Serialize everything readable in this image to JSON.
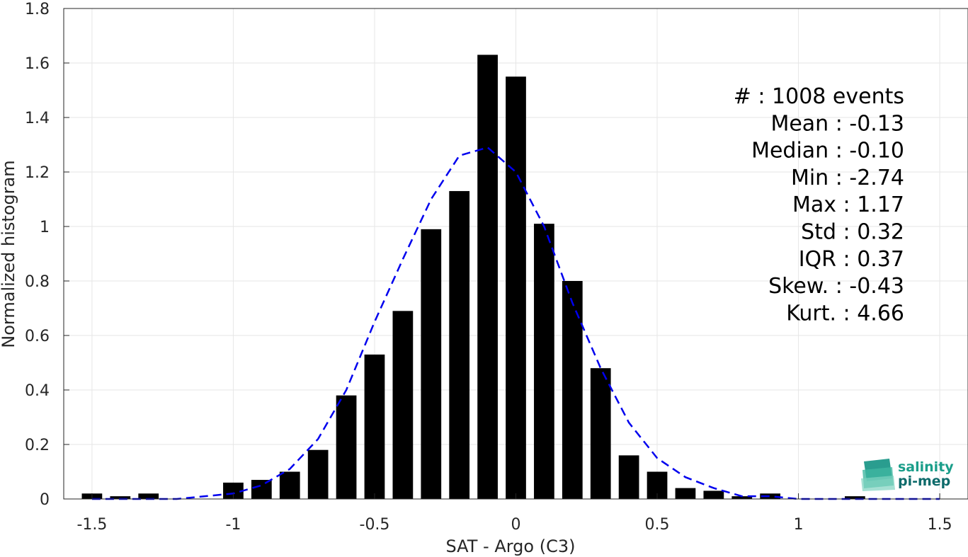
{
  "chart_data": {
    "type": "bar",
    "xlabel": "SAT - Argo (C3)",
    "ylabel": "Normalized histogram",
    "xlim": [
      -1.6,
      1.6
    ],
    "ylim": [
      0,
      1.8
    ],
    "grid": true,
    "xticks": [
      "-1.5",
      "-1",
      "-0.5",
      "0",
      "0.5",
      "1",
      "1.5"
    ],
    "xtick_values": [
      -1.5,
      -1,
      -0.5,
      0,
      0.5,
      1,
      1.5
    ],
    "yticks": [
      "0",
      "0.2",
      "0.4",
      "0.6",
      "0.8",
      "1",
      "1.2",
      "1.4",
      "1.6",
      "1.8"
    ],
    "ytick_values": [
      0,
      0.2,
      0.4,
      0.6,
      0.8,
      1.0,
      1.2,
      1.4,
      1.6,
      1.8
    ],
    "bar_color": "#000000",
    "bars": [
      {
        "x": -1.5,
        "y": 0.02
      },
      {
        "x": -1.4,
        "y": 0.01
      },
      {
        "x": -1.3,
        "y": 0.02
      },
      {
        "x": -1.0,
        "y": 0.06
      },
      {
        "x": -0.9,
        "y": 0.07
      },
      {
        "x": -0.8,
        "y": 0.1
      },
      {
        "x": -0.7,
        "y": 0.18
      },
      {
        "x": -0.6,
        "y": 0.38
      },
      {
        "x": -0.5,
        "y": 0.53
      },
      {
        "x": -0.4,
        "y": 0.69
      },
      {
        "x": -0.3,
        "y": 0.99
      },
      {
        "x": -0.2,
        "y": 1.13
      },
      {
        "x": -0.1,
        "y": 1.63
      },
      {
        "x": 0.0,
        "y": 1.55
      },
      {
        "x": 0.1,
        "y": 1.01
      },
      {
        "x": 0.2,
        "y": 0.8
      },
      {
        "x": 0.3,
        "y": 0.48
      },
      {
        "x": 0.4,
        "y": 0.16
      },
      {
        "x": 0.5,
        "y": 0.1
      },
      {
        "x": 0.6,
        "y": 0.04
      },
      {
        "x": 0.7,
        "y": 0.03
      },
      {
        "x": 0.8,
        "y": 0.01
      },
      {
        "x": 0.9,
        "y": 0.02
      },
      {
        "x": 1.2,
        "y": 0.01
      }
    ],
    "fit": {
      "type": "line",
      "style": "dashed",
      "color": "#0000ee",
      "x": [
        -1.5,
        -1.4,
        -1.3,
        -1.2,
        -1.1,
        -1.0,
        -0.9,
        -0.8,
        -0.7,
        -0.6,
        -0.5,
        -0.4,
        -0.3,
        -0.2,
        -0.1,
        0.0,
        0.1,
        0.2,
        0.3,
        0.4,
        0.5,
        0.6,
        0.7,
        0.8,
        0.9,
        1.0,
        1.1,
        1.2,
        1.3,
        1.4,
        1.5
      ],
      "y": [
        0.0,
        0.0,
        0.0,
        0.0,
        0.01,
        0.02,
        0.05,
        0.11,
        0.22,
        0.4,
        0.65,
        0.88,
        1.1,
        1.26,
        1.29,
        1.2,
        1.0,
        0.72,
        0.48,
        0.28,
        0.15,
        0.08,
        0.04,
        0.01,
        0.01,
        0.0,
        0.0,
        0.0,
        0.0,
        0.0,
        0.0
      ]
    },
    "stats": [
      "#  : 1008 events",
      "Mean : -0.13",
      "Median : -0.10",
      "Min : -2.74",
      "Max : 1.17",
      "Std : 0.32",
      "IQR : 0.37",
      "Skew. : -0.43",
      "Kurt. : 4.66"
    ]
  },
  "logo": {
    "line1": "salinity",
    "line2": "pi-mep",
    "color_primary": "#1a9e8a",
    "color_secondary": "#0e6b6b"
  }
}
